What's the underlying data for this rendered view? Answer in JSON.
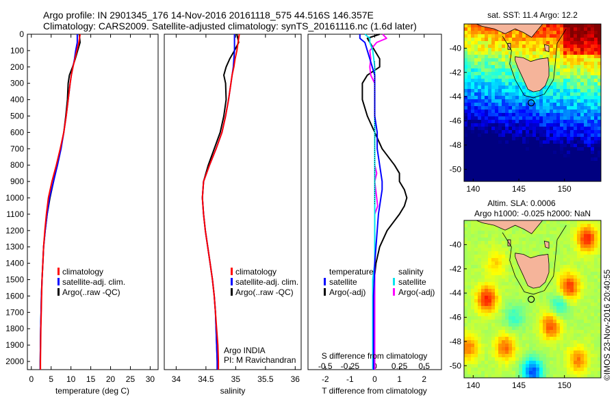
{
  "header": {
    "line1": "Argo profile: IN 2901345_176 14-Nov-2016 20161118_575 44.516S 146.357E",
    "line2": "Climatology: CARS2009. Satellite-adjusted climatology: synTS_20161116.nc (1.6d later)"
  },
  "colors": {
    "climatology": "#ff0000",
    "satellite": "#0000ff",
    "argo": "#000000",
    "salinity_satellite": "#00e5ee",
    "salinity_argo": "#ff00ff",
    "land": "#f5b49a",
    "coast_outline": "#000000"
  },
  "depth_axis": {
    "range": [
      0,
      2050
    ],
    "ticks": [
      0,
      100,
      200,
      300,
      400,
      500,
      600,
      700,
      800,
      900,
      1000,
      1100,
      1200,
      1300,
      1400,
      1500,
      1600,
      1700,
      1800,
      1900,
      2000
    ]
  },
  "chart_data": [
    {
      "type": "line",
      "id": "temperature",
      "xlabel": "temperature (deg C)",
      "xlim": [
        -1,
        32
      ],
      "xticks": [
        0,
        5,
        10,
        15,
        20,
        25,
        30
      ],
      "ylim": [
        2050,
        0
      ],
      "legend": [
        "climatology",
        "satellite-adj. clim.",
        "Argo(..raw -QC)"
      ],
      "depth": [
        0,
        50,
        100,
        150,
        200,
        250,
        300,
        400,
        500,
        600,
        700,
        800,
        900,
        1000,
        1100,
        1200,
        1300,
        1400,
        1500,
        1600,
        1700,
        1800,
        1900,
        2000,
        2050
      ],
      "series": [
        {
          "name": "climatology",
          "values": [
            12.3,
            12.0,
            11.5,
            11.0,
            10.5,
            10.1,
            9.8,
            9.3,
            8.8,
            8.2,
            7.3,
            6.3,
            5.2,
            4.3,
            3.8,
            3.4,
            3.1,
            2.9,
            2.7,
            2.6,
            2.5,
            2.4,
            2.35,
            2.3,
            2.3
          ]
        },
        {
          "name": "satellite-adj. clim.",
          "values": [
            11.6,
            11.6,
            11.2,
            10.9,
            10.5,
            10.1,
            9.8,
            9.3,
            8.8,
            8.2,
            7.5,
            6.6,
            5.6,
            4.6,
            4.0,
            3.5,
            3.1,
            2.9,
            2.7,
            2.55,
            2.45,
            2.35,
            2.3,
            2.25,
            2.25
          ]
        },
        {
          "name": "Argo(..raw -QC)",
          "values": [
            12.1,
            12.3,
            11.7,
            11.1,
            10.4,
            9.6,
            9.3,
            9.1,
            8.7,
            8.2,
            7.4,
            6.5,
            5.6,
            4.7,
            4.0,
            3.5,
            3.1,
            2.9,
            2.7,
            2.55,
            2.45,
            2.35,
            2.3,
            2.25,
            2.25
          ]
        }
      ]
    },
    {
      "type": "line",
      "id": "salinity",
      "xlabel": "salinity",
      "xlim": [
        33.8,
        36.1
      ],
      "xticks": [
        34,
        34.5,
        35,
        35.5,
        36
      ],
      "xticklabels": [
        "34",
        "34.5",
        "35",
        "35.5",
        "36"
      ],
      "ylim": [
        2050,
        0
      ],
      "legend": [
        "climatology",
        "satellite-adj. clim.",
        "Argo(..raw -QC)"
      ],
      "annotation": [
        "Argo INDIA",
        "PI: M Ravichandran"
      ],
      "depth": [
        0,
        50,
        100,
        150,
        200,
        250,
        300,
        400,
        500,
        600,
        700,
        800,
        900,
        1000,
        1100,
        1200,
        1300,
        1400,
        1500,
        1600,
        1700,
        1800,
        1900,
        2000,
        2050
      ],
      "series": [
        {
          "name": "climatology",
          "values": [
            35.06,
            35.04,
            35.02,
            34.99,
            34.97,
            34.94,
            34.92,
            34.88,
            34.83,
            34.77,
            34.67,
            34.56,
            34.46,
            34.44,
            34.46,
            34.49,
            34.53,
            34.57,
            34.61,
            34.64,
            34.66,
            34.68,
            34.7,
            34.71,
            34.71
          ]
        },
        {
          "name": "satellite-adj. clim.",
          "values": [
            34.98,
            34.98,
            34.98,
            34.97,
            34.96,
            34.94,
            34.92,
            34.88,
            34.83,
            34.77,
            34.67,
            34.56,
            34.46,
            34.44,
            34.46,
            34.49,
            34.53,
            34.57,
            34.61,
            34.64,
            34.66,
            34.67,
            34.68,
            34.69,
            34.69
          ]
        },
        {
          "name": "Argo(..raw -QC)",
          "values": [
            35.02,
            35.05,
            34.98,
            34.9,
            34.84,
            34.8,
            34.83,
            34.84,
            34.8,
            34.74,
            34.64,
            34.54,
            34.46,
            34.44,
            34.46,
            34.49,
            34.53,
            34.57,
            34.61,
            34.64,
            34.66,
            34.67,
            34.68,
            34.69,
            34.69
          ]
        }
      ]
    },
    {
      "type": "line",
      "id": "difference",
      "xlabel": "T difference from climatology",
      "xlim": [
        -2.7,
        2.7
      ],
      "xticks": [
        -2,
        -1,
        0,
        1,
        2
      ],
      "top_label": "S difference from climatology",
      "top_ticks": [
        -0.5,
        -0.25,
        0,
        0.25,
        0.5
      ],
      "top_ticklabels": [
        "-0.5",
        "-0.25",
        "0",
        "0.25",
        "0.5"
      ],
      "ylim": [
        2050,
        0
      ],
      "legend_left_title": "temperature",
      "legend_right_title": "salinity",
      "legend_left": [
        "satellite",
        "Argo(-adj)"
      ],
      "legend_right": [
        "satellite",
        "Argo(-adj)"
      ],
      "depth": [
        0,
        25,
        50,
        100,
        150,
        200,
        250,
        300,
        400,
        500,
        600,
        700,
        800,
        850,
        900,
        950,
        1000,
        1050,
        1100,
        1200,
        1300,
        1400,
        1500,
        1600,
        1700,
        1800,
        1900,
        2000,
        2050
      ],
      "series": [
        {
          "name": "T satellite",
          "group": "temperature",
          "values": [
            -0.6,
            -0.6,
            -0.4,
            -0.3,
            -0.2,
            -0.1,
            0,
            0,
            0,
            0,
            0.1,
            0.1,
            0.2,
            0.25,
            0.3,
            0.3,
            0.25,
            0.2,
            0.15,
            0.1,
            0.05,
            0.0,
            -0.02,
            -0.05,
            -0.05,
            -0.05,
            -0.05,
            -0.05,
            -0.05
          ]
        },
        {
          "name": "T Argo(-adj)",
          "group": "temperature",
          "values": [
            0.2,
            -0.3,
            -0.2,
            0.0,
            0.2,
            0.2,
            -0.3,
            -0.5,
            -0.5,
            -0.3,
            0.0,
            0.3,
            0.8,
            1.0,
            1.0,
            1.2,
            1.3,
            1.2,
            1.0,
            0.5,
            0.2,
            0.05,
            -0.02,
            -0.05,
            -0.05,
            -0.05,
            -0.05,
            -0.05,
            -0.05
          ]
        },
        {
          "name": "S satellite",
          "group": "salinity",
          "values": [
            -0.1,
            -0.05,
            -0.05,
            -0.02,
            -0.01,
            0,
            0,
            0,
            0,
            0,
            0,
            0,
            0,
            0,
            0,
            0,
            0,
            0,
            0,
            0,
            0,
            0,
            -0.02,
            -0.02,
            -0.02,
            -0.02,
            -0.02,
            -0.02,
            -0.02
          ]
        },
        {
          "name": "S Argo(-adj)",
          "group": "salinity",
          "values": [
            0.08,
            0.12,
            0.02,
            -0.05,
            -0.04,
            -0.05,
            -0.04,
            0,
            0,
            0,
            0,
            0,
            0,
            0.02,
            0,
            0.01,
            0.02,
            0.03,
            0,
            0,
            0,
            0,
            0,
            0,
            0,
            0,
            0,
            0,
            0
          ]
        }
      ]
    },
    {
      "type": "heatmap",
      "id": "sst-map",
      "title": "sat. SST: 11.4  Argo: 12.2",
      "xlim": [
        139,
        154
      ],
      "ylim": [
        -51,
        -38
      ],
      "xticks": [
        140,
        145,
        150
      ],
      "yticks": [
        -40,
        -42,
        -44,
        -46,
        -48,
        -50
      ],
      "marker": [
        146.357,
        -44.516
      ],
      "colormap": "jet",
      "value_range": [
        8,
        18
      ]
    },
    {
      "type": "heatmap",
      "id": "sla-map",
      "title": "Altim. SLA: 0.0006",
      "subtitle": "Argo h1000: -0.025  h2000: NaN",
      "xlim": [
        139,
        154
      ],
      "ylim": [
        -51,
        -38
      ],
      "xticks": [
        140,
        145,
        150
      ],
      "yticks": [
        -40,
        -42,
        -44,
        -46,
        -48,
        -50
      ],
      "marker": [
        146.357,
        -44.516
      ],
      "colormap": "jet",
      "value_range": [
        -0.3,
        0.3
      ]
    }
  ],
  "credit": "©IMOS 23-Nov-2016 20:40:55"
}
